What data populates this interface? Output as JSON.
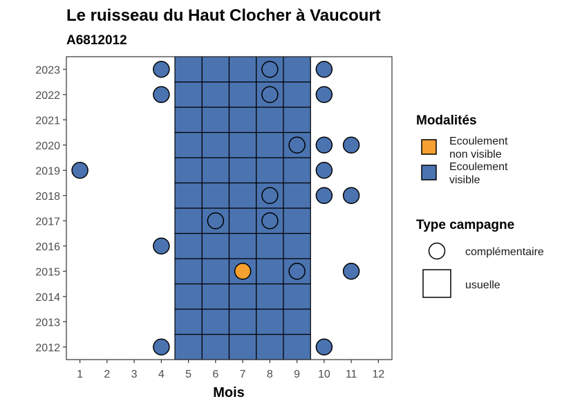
{
  "chart_data": {
    "type": "heatmap",
    "title": "Le ruisseau du Haut Clocher à Vaucourt",
    "subtitle": "A6812012",
    "xlabel": "Mois",
    "ylabel": "",
    "x_ticks": [
      "1",
      "2",
      "3",
      "4",
      "5",
      "6",
      "7",
      "8",
      "9",
      "10",
      "11",
      "12"
    ],
    "y_ticks": [
      "2012",
      "2013",
      "2014",
      "2015",
      "2016",
      "2017",
      "2018",
      "2019",
      "2020",
      "2021",
      "2022",
      "2023"
    ],
    "xlim": [
      0.5,
      12.5
    ],
    "ylim": [
      2011.5,
      2023.5
    ],
    "grid": false,
    "legend_position": "right",
    "colors": {
      "Ecoulement visible": "#4a73b0",
      "Ecoulement non visible": "#f5a02f",
      "outline": "#000000"
    },
    "legend": {
      "modalites_title": "Modalités",
      "modalites": [
        {
          "key": "Ecoulement non visible",
          "lines": [
            "Ecoulement",
            "non visible"
          ]
        },
        {
          "key": "Ecoulement visible",
          "lines": [
            "Ecoulement",
            "visible"
          ]
        }
      ],
      "type_title": "Type campagne",
      "types": [
        {
          "key": "complementaire",
          "label": "complémentaire",
          "shape": "circle"
        },
        {
          "key": "usuelle",
          "label": "usuelle",
          "shape": "square"
        }
      ]
    },
    "squares": {
      "type_campagne": "usuelle",
      "modalite": "Ecoulement visible",
      "months": [
        5,
        6,
        7,
        8,
        9
      ],
      "years": [
        2012,
        2013,
        2014,
        2015,
        2016,
        2017,
        2018,
        2019,
        2020,
        2021,
        2022,
        2023
      ]
    },
    "points": [
      {
        "month": 4,
        "year": 2023,
        "modalite": "Ecoulement visible",
        "type_campagne": "complementaire"
      },
      {
        "month": 8,
        "year": 2023,
        "modalite": "Ecoulement visible",
        "type_campagne": "complementaire"
      },
      {
        "month": 10,
        "year": 2023,
        "modalite": "Ecoulement visible",
        "type_campagne": "complementaire"
      },
      {
        "month": 4,
        "year": 2022,
        "modalite": "Ecoulement visible",
        "type_campagne": "complementaire"
      },
      {
        "month": 8,
        "year": 2022,
        "modalite": "Ecoulement visible",
        "type_campagne": "complementaire"
      },
      {
        "month": 10,
        "year": 2022,
        "modalite": "Ecoulement visible",
        "type_campagne": "complementaire"
      },
      {
        "month": 9,
        "year": 2020,
        "modalite": "Ecoulement visible",
        "type_campagne": "complementaire"
      },
      {
        "month": 10,
        "year": 2020,
        "modalite": "Ecoulement visible",
        "type_campagne": "complementaire"
      },
      {
        "month": 11,
        "year": 2020,
        "modalite": "Ecoulement visible",
        "type_campagne": "complementaire"
      },
      {
        "month": 1,
        "year": 2019,
        "modalite": "Ecoulement visible",
        "type_campagne": "complementaire"
      },
      {
        "month": 10,
        "year": 2019,
        "modalite": "Ecoulement visible",
        "type_campagne": "complementaire"
      },
      {
        "month": 8,
        "year": 2018,
        "modalite": "Ecoulement visible",
        "type_campagne": "complementaire"
      },
      {
        "month": 10,
        "year": 2018,
        "modalite": "Ecoulement visible",
        "type_campagne": "complementaire"
      },
      {
        "month": 11,
        "year": 2018,
        "modalite": "Ecoulement visible",
        "type_campagne": "complementaire"
      },
      {
        "month": 6,
        "year": 2017,
        "modalite": "Ecoulement visible",
        "type_campagne": "complementaire"
      },
      {
        "month": 8,
        "year": 2017,
        "modalite": "Ecoulement visible",
        "type_campagne": "complementaire"
      },
      {
        "month": 4,
        "year": 2016,
        "modalite": "Ecoulement visible",
        "type_campagne": "complementaire"
      },
      {
        "month": 7,
        "year": 2015,
        "modalite": "Ecoulement non visible",
        "type_campagne": "complementaire"
      },
      {
        "month": 9,
        "year": 2015,
        "modalite": "Ecoulement visible",
        "type_campagne": "complementaire"
      },
      {
        "month": 11,
        "year": 2015,
        "modalite": "Ecoulement visible",
        "type_campagne": "complementaire"
      },
      {
        "month": 4,
        "year": 2012,
        "modalite": "Ecoulement visible",
        "type_campagne": "complementaire"
      },
      {
        "month": 10,
        "year": 2012,
        "modalite": "Ecoulement visible",
        "type_campagne": "complementaire"
      }
    ]
  }
}
